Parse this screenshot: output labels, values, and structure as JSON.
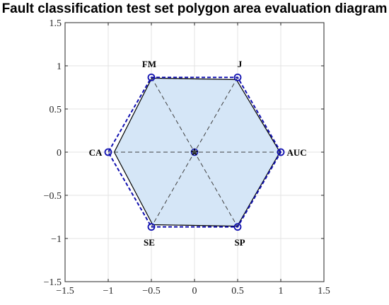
{
  "chart_data": {
    "type": "radar",
    "title": "Fault classification test set polygon area evaluation diagram",
    "xlim": [
      -1.5,
      1.5
    ],
    "ylim": [
      -1.5,
      1.5
    ],
    "xticks": [
      -1.5,
      -1,
      -0.5,
      0,
      0.5,
      1,
      1.5
    ],
    "yticks": [
      -1.5,
      -1,
      -0.5,
      0,
      0.5,
      1,
      1.5
    ],
    "xtick_labels": [
      "−1.5",
      "−1",
      "−0.5",
      "0",
      "0.5",
      "1",
      "1.5"
    ],
    "ytick_labels": [
      "−1.5",
      "−1",
      "−0.5",
      "0",
      "0.5",
      "1",
      "1.5"
    ],
    "grid": true,
    "axes": [
      "AUC",
      "J",
      "FM",
      "CA",
      "SE",
      "SP"
    ],
    "axis_angles_deg": [
      0,
      60,
      120,
      180,
      240,
      300
    ],
    "series": [
      {
        "role": "reference",
        "values": [
          1,
          1,
          1,
          1,
          1,
          1
        ],
        "color": "#1010b0",
        "style": "dashed",
        "marker": "circle"
      },
      {
        "role": "model",
        "values": [
          0.99,
          0.97,
          0.99,
          0.93,
          0.97,
          0.99
        ],
        "color": "#000000",
        "fill": "#d5e6f7",
        "style": "solid"
      }
    ],
    "center_marker": "star"
  }
}
